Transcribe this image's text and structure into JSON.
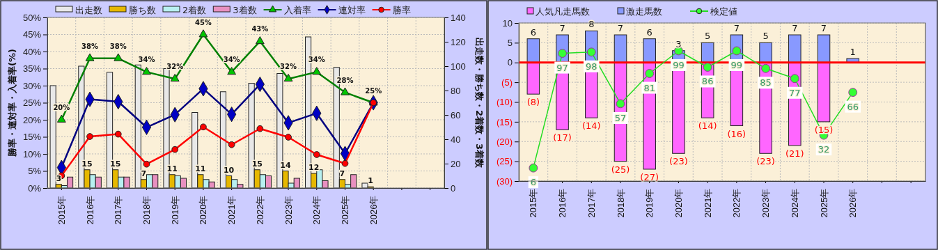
{
  "chart_data": [
    {
      "type": "bar",
      "ylabel": "勝率・連対率・入着率(%)",
      "y2label": "出走数・勝ち数・2着数・3着数",
      "categories": [
        "2015年",
        "2016年",
        "2017年",
        "2018年",
        "2019年",
        "2020年",
        "2021年",
        "2022年",
        "2023年",
        "2024年",
        "2025年",
        "2026年",
        null,
        null
      ],
      "ylim": [
        0,
        50
      ],
      "yticks": [
        {
          "value": 0,
          "label": "0%"
        },
        {
          "value": 5,
          "label": "5%"
        },
        {
          "value": 10,
          "label": "10%"
        },
        {
          "value": 15,
          "label": "15%"
        },
        {
          "value": 20,
          "label": "20%"
        },
        {
          "value": 25,
          "label": "25%"
        },
        {
          "value": 30,
          "label": "30%"
        },
        {
          "value": 35,
          "label": "35%"
        },
        {
          "value": 40,
          "label": "40%"
        },
        {
          "value": 45,
          "label": "45%"
        },
        {
          "value": 50,
          "label": "50%"
        }
      ],
      "y2lim": [
        0,
        140
      ],
      "y2ticks": [
        0,
        20,
        40,
        60,
        80,
        100,
        120,
        140
      ],
      "grid": true,
      "legend": "top",
      "series": [
        {
          "name": "出走数",
          "color": "#e8e8e8",
          "axis": "y2",
          "values": [
            84,
            100,
            95,
            101,
            98,
            62,
            79,
            86,
            94,
            124,
            99,
            4,
            null,
            null
          ]
        },
        {
          "name": "勝ち数",
          "color": "#e6b800",
          "axis": "y2",
          "values": [
            3,
            15,
            15,
            7,
            11,
            11,
            10,
            15,
            14,
            12,
            7,
            1,
            null,
            null
          ],
          "value_labels": [
            "3",
            "15",
            "15",
            "7",
            "11",
            "11",
            "10",
            "15",
            "14",
            "12",
            "7",
            "1",
            null,
            null
          ]
        },
        {
          "name": "2着数",
          "color": "#b8f0f0",
          "axis": "y2",
          "values": [
            2,
            11,
            9,
            11,
            10,
            7,
            7,
            11,
            4,
            15,
            3,
            0,
            null,
            null
          ]
        },
        {
          "name": "3着数",
          "color": "#e890c0",
          "axis": "y2",
          "values": [
            9,
            9,
            9,
            11,
            8,
            5,
            3,
            10,
            8,
            6,
            11,
            0,
            null,
            null
          ]
        },
        {
          "name": "入着率",
          "type": "line",
          "color": "#008000",
          "marker": "triangle",
          "values": [
            20,
            38,
            38,
            34,
            32,
            45,
            34,
            43,
            32,
            34,
            28,
            25,
            null,
            null
          ],
          "value_labels": [
            "20%",
            "38%",
            "38%",
            "34%",
            "32%",
            "45%",
            "34%",
            "43%",
            "32%",
            "34%",
            "28%",
            "25%",
            null,
            null
          ]
        },
        {
          "name": "連対率",
          "type": "line",
          "color": "#000080",
          "marker": "diamond",
          "values": [
            6.0,
            26.0,
            25.3,
            17.8,
            21.5,
            29.1,
            21.6,
            30.4,
            19.1,
            21.9,
            10.1,
            25,
            null,
            null
          ]
        },
        {
          "name": "勝率",
          "type": "line",
          "color": "#ff0000",
          "marker": "circle",
          "values": [
            3.6,
            15.1,
            15.8,
            7.0,
            11.3,
            17.9,
            12.7,
            17.4,
            14.9,
            9.8,
            7.2,
            25,
            null,
            null
          ]
        }
      ]
    },
    {
      "type": "bar",
      "stacked": true,
      "categories": [
        "2015年",
        "2016年",
        "2017年",
        "2018年",
        "2019年",
        "2020年",
        "2021年",
        "2022年",
        "2023年",
        "2024年",
        "2025年",
        "2026年",
        null,
        null
      ],
      "ylim": [
        -30,
        10
      ],
      "yticks": [
        {
          "value": -30,
          "label": "(30)"
        },
        {
          "value": -25,
          "label": "(25)"
        },
        {
          "value": -20,
          "label": "(20)"
        },
        {
          "value": -15,
          "label": "(15)"
        },
        {
          "value": -10,
          "label": "(10)"
        },
        {
          "value": -5,
          "label": "(5)"
        },
        0,
        5,
        10
      ],
      "y2lim": [
        -4.4,
        121.1
      ],
      "tick_labels": "xy",
      "grid": true,
      "legend": "top",
      "ref_lines": [
        {
          "axis": "y",
          "value": 0,
          "color": "#ff0000"
        }
      ],
      "series": [
        {
          "name": "人気凡走馬数",
          "color": "#ff66ff",
          "values": [
            -8,
            -17,
            -14,
            -25,
            -27,
            -23,
            -14,
            -16,
            -23,
            -21,
            -15,
            null,
            null,
            null
          ],
          "value_labels": [
            "(8)",
            "(17)",
            "(14)",
            "(25)",
            "(27)",
            "(23)",
            "(14)",
            "(16)",
            "(23)",
            "(21)",
            "(15)",
            null,
            null,
            null
          ]
        },
        {
          "name": "激走馬数",
          "color": "#8899ff",
          "values": [
            6,
            7,
            8,
            7,
            6,
            3,
            5,
            7,
            5,
            7,
            7,
            1,
            null,
            null
          ],
          "value_labels": [
            "6",
            "7",
            "8",
            "7",
            "6",
            "3",
            "5",
            "7",
            "5",
            "7",
            "7",
            "1",
            null,
            null
          ]
        },
        {
          "name": "検定値",
          "type": "line",
          "axis": "y2",
          "color": "#22dd22",
          "marker": "circle",
          "values": [
            6,
            97,
            98,
            57,
            81,
            99,
            86,
            99,
            85,
            77,
            32,
            66,
            null,
            null
          ],
          "value_labels": [
            "6",
            "97",
            "98",
            "57",
            "81",
            "99",
            "86",
            "99",
            "85",
            "77",
            "32",
            "66",
            null,
            null
          ]
        }
      ]
    }
  ]
}
